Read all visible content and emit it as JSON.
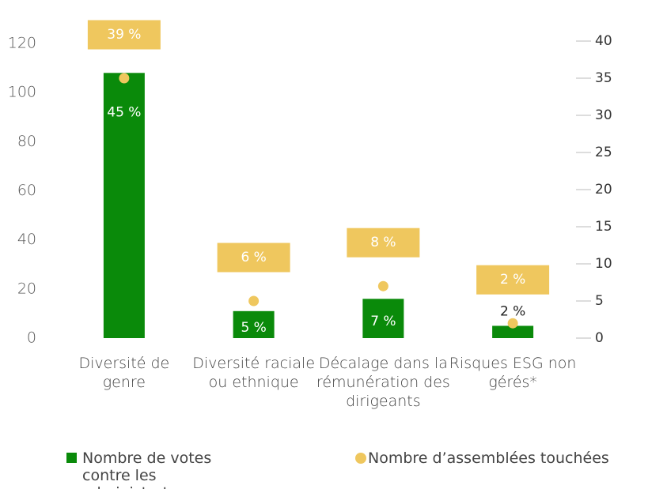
{
  "chart_data": {
    "type": "bar",
    "categories": [
      "Diversité de genre",
      "Diversité raciale ou ethnique",
      "Décalage dans la rémunération des dirigeants",
      "Risques ESG non gérés*"
    ],
    "series": [
      {
        "name": "Nombre de votes contre les administrateurs",
        "type": "bar",
        "color": "#0a8a0a",
        "values": [
          108,
          11,
          16,
          5
        ],
        "annotations": [
          "45 %",
          "5 %",
          "7 %",
          "2 %"
        ]
      },
      {
        "name": "Nombre d’assemblées touchées",
        "type": "scatter",
        "axis": "y2",
        "color": "#efc75e",
        "values": [
          35,
          5,
          7,
          2
        ],
        "annotations": [
          "39 %",
          "6 %",
          "8 %",
          "2 %"
        ]
      }
    ],
    "ylim": [
      0,
      120
    ],
    "yticks": [
      0,
      20,
      40,
      60,
      80,
      100,
      120
    ],
    "y2lim": [
      0,
      40
    ],
    "y2ticks": [
      0,
      5,
      10,
      15,
      20,
      25,
      30,
      35,
      40
    ]
  }
}
